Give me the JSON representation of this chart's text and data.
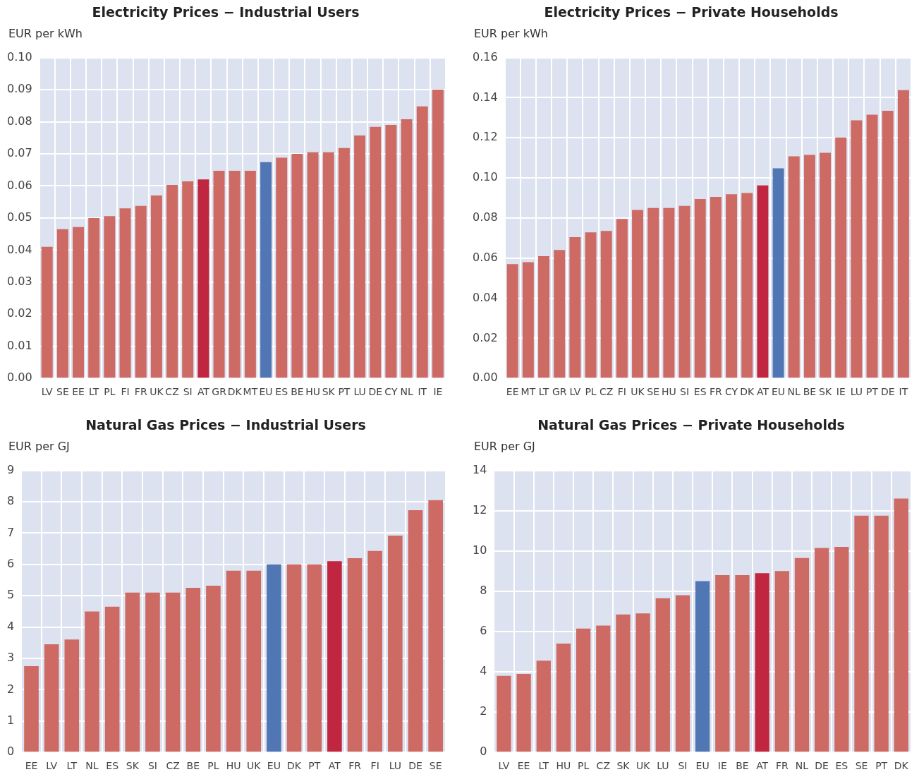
{
  "chart_data": [
    {
      "type": "bar",
      "title": "Electricity Prices − Industrial Users",
      "ylabel": "EUR per kWh",
      "grid": true,
      "legend": false,
      "categories": [
        "LV",
        "SE",
        "EE",
        "LT",
        "PL",
        "FI",
        "FR",
        "UK",
        "CZ",
        "SI",
        "AT",
        "GR",
        "DK",
        "MT",
        "EU",
        "ES",
        "BE",
        "HU",
        "SK",
        "PT",
        "LU",
        "DE",
        "CY",
        "NL",
        "IT",
        "IE"
      ],
      "values": [
        0.041,
        0.0465,
        0.0472,
        0.05,
        0.0506,
        0.053,
        0.0538,
        0.057,
        0.0603,
        0.0614,
        0.062,
        0.0647,
        0.0647,
        0.0647,
        0.0674,
        0.0688,
        0.07,
        0.0705,
        0.0705,
        0.0718,
        0.0757,
        0.0784,
        0.079,
        0.0808,
        0.0848,
        0.09
      ],
      "colors": [
        "#cd6a64",
        "#cd6a64",
        "#cd6a64",
        "#cd6a64",
        "#cd6a64",
        "#cd6a64",
        "#cd6a64",
        "#cd6a64",
        "#cd6a64",
        "#cd6a64",
        "#c0263f",
        "#cd6a64",
        "#cd6a64",
        "#cd6a64",
        "#5076b4",
        "#cd6a64",
        "#cd6a64",
        "#cd6a64",
        "#cd6a64",
        "#cd6a64",
        "#cd6a64",
        "#cd6a64",
        "#cd6a64",
        "#cd6a64",
        "#cd6a64",
        "#cd6a64"
      ],
      "ylim": [
        0,
        0.1
      ],
      "yticks": [
        {
          "value": 0,
          "label": "0.00"
        },
        {
          "value": 0.01,
          "label": "0.01"
        },
        {
          "value": 0.02,
          "label": "0.02"
        },
        {
          "value": 0.03,
          "label": "0.03"
        },
        {
          "value": 0.04,
          "label": "0.04"
        },
        {
          "value": 0.05,
          "label": "0.05"
        },
        {
          "value": 0.06,
          "label": "0.06"
        },
        {
          "value": 0.07,
          "label": "0.07"
        },
        {
          "value": 0.08,
          "label": "0.08"
        },
        {
          "value": 0.09,
          "label": "0.09"
        },
        {
          "value": 0.1,
          "label": "0.10"
        }
      ]
    },
    {
      "type": "bar",
      "title": "Electricity Prices − Private Households",
      "ylabel": "EUR per kWh",
      "grid": true,
      "legend": false,
      "categories": [
        "EE",
        "MT",
        "LT",
        "GR",
        "LV",
        "PL",
        "CZ",
        "FI",
        "UK",
        "SE",
        "HU",
        "SI",
        "ES",
        "FR",
        "CY",
        "DK",
        "AT",
        "EU",
        "NL",
        "BE",
        "SK",
        "IE",
        "LU",
        "PT",
        "DE",
        "IT"
      ],
      "values": [
        0.057,
        0.058,
        0.061,
        0.064,
        0.0705,
        0.0728,
        0.0735,
        0.0795,
        0.084,
        0.085,
        0.085,
        0.086,
        0.0895,
        0.0905,
        0.0918,
        0.0925,
        0.0962,
        0.1048,
        0.1108,
        0.1115,
        0.1125,
        0.1202,
        0.1287,
        0.1315,
        0.1335,
        0.1438
      ],
      "colors": [
        "#cd6a64",
        "#cd6a64",
        "#cd6a64",
        "#cd6a64",
        "#cd6a64",
        "#cd6a64",
        "#cd6a64",
        "#cd6a64",
        "#cd6a64",
        "#cd6a64",
        "#cd6a64",
        "#cd6a64",
        "#cd6a64",
        "#cd6a64",
        "#cd6a64",
        "#cd6a64",
        "#c0263f",
        "#5076b4",
        "#cd6a64",
        "#cd6a64",
        "#cd6a64",
        "#cd6a64",
        "#cd6a64",
        "#cd6a64",
        "#cd6a64",
        "#cd6a64"
      ],
      "ylim": [
        0,
        0.16
      ],
      "yticks": [
        {
          "value": 0,
          "label": "0.00"
        },
        {
          "value": 0.02,
          "label": "0.02"
        },
        {
          "value": 0.04,
          "label": "0.04"
        },
        {
          "value": 0.06,
          "label": "0.06"
        },
        {
          "value": 0.08,
          "label": "0.08"
        },
        {
          "value": 0.1,
          "label": "0.10"
        },
        {
          "value": 0.12,
          "label": "0.12"
        },
        {
          "value": 0.14,
          "label": "0.14"
        },
        {
          "value": 0.16,
          "label": "0.16"
        }
      ]
    },
    {
      "type": "bar",
      "title": "Natural Gas Prices − Industrial Users",
      "ylabel": "EUR per GJ",
      "grid": true,
      "legend": false,
      "categories": [
        "EE",
        "LV",
        "LT",
        "NL",
        "ES",
        "SK",
        "SI",
        "CZ",
        "BE",
        "PL",
        "HU",
        "UK",
        "EU",
        "DK",
        "PT",
        "AT",
        "FR",
        "FI",
        "LU",
        "DE",
        "SE"
      ],
      "values": [
        2.75,
        3.45,
        3.6,
        4.5,
        4.65,
        5.1,
        5.1,
        5.1,
        5.25,
        5.32,
        5.8,
        5.8,
        6.0,
        6.0,
        6.0,
        6.1,
        6.2,
        6.43,
        6.92,
        7.73,
        8.05
      ],
      "colors": [
        "#cd6a64",
        "#cd6a64",
        "#cd6a64",
        "#cd6a64",
        "#cd6a64",
        "#cd6a64",
        "#cd6a64",
        "#cd6a64",
        "#cd6a64",
        "#cd6a64",
        "#cd6a64",
        "#cd6a64",
        "#5076b4",
        "#cd6a64",
        "#cd6a64",
        "#c0263f",
        "#cd6a64",
        "#cd6a64",
        "#cd6a64",
        "#cd6a64",
        "#cd6a64"
      ],
      "ylim": [
        0,
        9
      ],
      "yticks": [
        0,
        1,
        2,
        3,
        4,
        5,
        6,
        7,
        8,
        9
      ]
    },
    {
      "type": "bar",
      "title": "Natural Gas Prices − Private Households",
      "ylabel": "EUR per GJ",
      "grid": true,
      "legend": false,
      "categories": [
        "LV",
        "EE",
        "LT",
        "HU",
        "PL",
        "CZ",
        "SK",
        "UK",
        "LU",
        "SI",
        "EU",
        "IE",
        "BE",
        "AT",
        "FR",
        "NL",
        "DE",
        "ES",
        "SE",
        "PT",
        "DK"
      ],
      "values": [
        3.8,
        3.9,
        4.55,
        5.4,
        6.15,
        6.3,
        6.85,
        6.9,
        7.65,
        7.8,
        8.5,
        8.8,
        8.8,
        8.9,
        9.0,
        9.65,
        10.15,
        10.2,
        11.75,
        11.75,
        12.6
      ],
      "colors": [
        "#cd6a64",
        "#cd6a64",
        "#cd6a64",
        "#cd6a64",
        "#cd6a64",
        "#cd6a64",
        "#cd6a64",
        "#cd6a64",
        "#cd6a64",
        "#cd6a64",
        "#5076b4",
        "#cd6a64",
        "#cd6a64",
        "#c0263f",
        "#cd6a64",
        "#cd6a64",
        "#cd6a64",
        "#cd6a64",
        "#cd6a64",
        "#cd6a64",
        "#cd6a64"
      ],
      "ylim": [
        0,
        14
      ],
      "yticks": [
        0,
        2,
        4,
        6,
        8,
        10,
        12,
        14
      ]
    }
  ]
}
